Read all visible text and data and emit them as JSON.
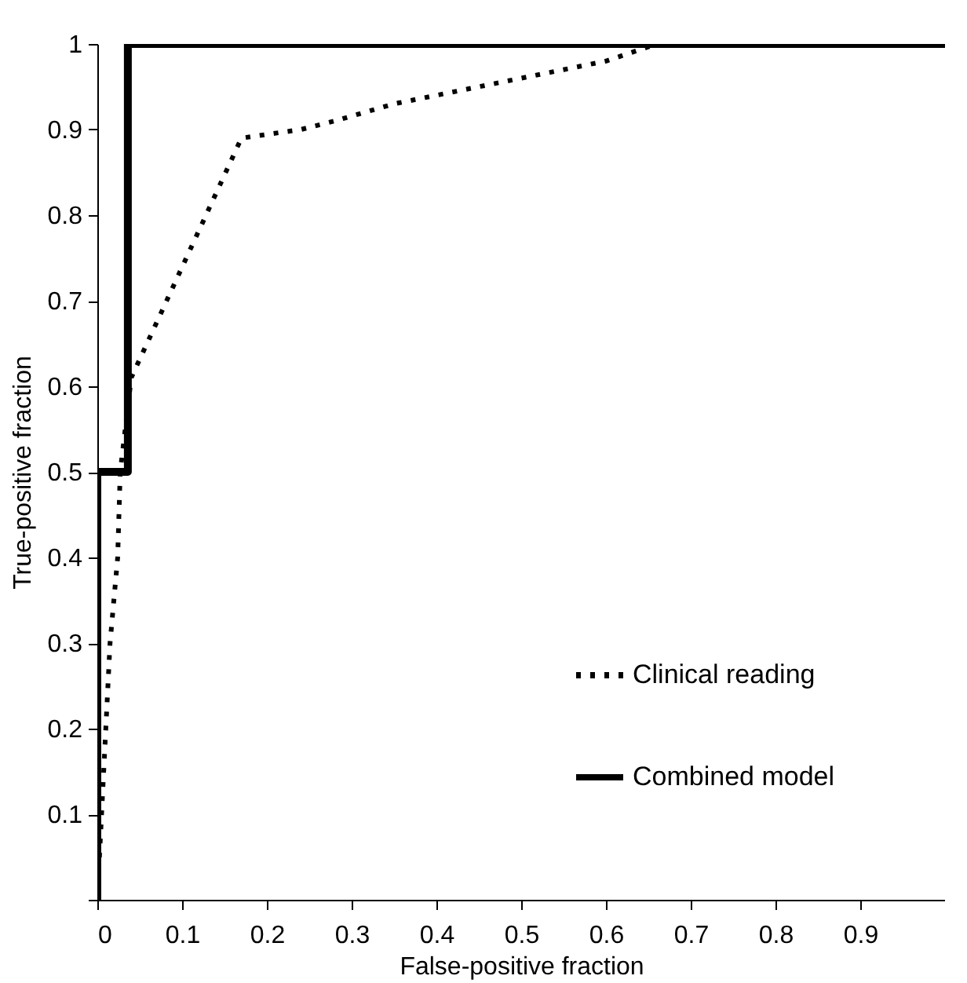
{
  "chart_data": {
    "type": "line",
    "xlabel": "False-positive fraction",
    "ylabel": "True-positive fraction",
    "xlim": [
      0,
      1
    ],
    "ylim": [
      0,
      1
    ],
    "xticks": [
      0,
      0.1,
      0.2,
      0.3,
      0.4,
      0.5,
      0.6,
      0.7,
      0.8,
      0.9
    ],
    "yticks": [
      {
        "value": 0,
        "label": null
      },
      0.1,
      0.2,
      0.3,
      0.4,
      0.5,
      0.6,
      0.7,
      0.8,
      0.9,
      1
    ],
    "grid": false,
    "legend": "bottom right",
    "marker": "none",
    "series": [
      {
        "name": "Clinical reading",
        "color": "#000000",
        "line_style": "dotted",
        "x": [
          0,
          0.005,
          0.01,
          0.015,
          0.024,
          0.027,
          0.04,
          0.17,
          0.24,
          0.28,
          0.35,
          0.45,
          0.55,
          0.6,
          0.66,
          1
        ],
        "values": [
          0,
          0.1,
          0.2,
          0.3,
          0.4,
          0.5,
          0.61,
          0.89,
          0.9,
          0.91,
          0.93,
          0.95,
          0.97,
          0.98,
          1,
          1
        ]
      },
      {
        "name": "Combined model",
        "color": "#000000",
        "line_style": "solid",
        "x": [
          0,
          0,
          0.036,
          0.036,
          1
        ],
        "values": [
          0,
          0.5,
          0.5,
          1,
          1
        ]
      }
    ]
  }
}
